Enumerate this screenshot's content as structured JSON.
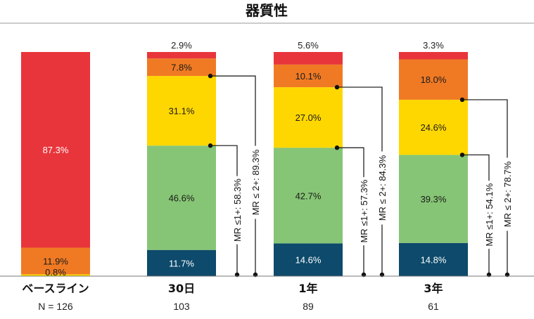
{
  "chart_data": {
    "type": "bar",
    "stacked": true,
    "title": "器質性",
    "categories": [
      "ベースライン",
      "30日",
      "1年",
      "3年"
    ],
    "n_values": [
      "N = 126",
      "103",
      "89",
      "61"
    ],
    "series": [
      {
        "color": "#0d4a6b",
        "values": [
          0.0,
          11.7,
          14.6,
          14.8
        ],
        "labels": [
          "",
          "11.7%",
          "14.6%",
          "14.8%"
        ]
      },
      {
        "color": "#86c575",
        "values": [
          0.0,
          46.6,
          42.7,
          39.3
        ],
        "labels": [
          "",
          "46.6%",
          "42.7%",
          "39.3%"
        ]
      },
      {
        "color": "#ffd700",
        "values": [
          0.8,
          31.1,
          27.0,
          24.6
        ],
        "labels": [
          "0.8%",
          "31.1%",
          "27.0%",
          "24.6%"
        ]
      },
      {
        "color": "#f07a24",
        "values": [
          11.9,
          7.8,
          10.1,
          18.0
        ],
        "labels": [
          "11.9%",
          "7.8%",
          "10.1%",
          "18.0%"
        ]
      },
      {
        "color": "#e8353b",
        "values": [
          87.3,
          2.9,
          5.6,
          3.3
        ],
        "labels": [
          "87.3%",
          "2.9%",
          "5.6%",
          "3.3%"
        ]
      }
    ],
    "annotations": [
      {
        "category": "30日",
        "label1": "MR ≤1+: 58.3%",
        "label2": "MR ≤ 2+: 89.3%"
      },
      {
        "category": "1年",
        "label1": "MR ≤1+: 57.3%",
        "label2": "MR ≤ 2+: 84.3%"
      },
      {
        "category": "3年",
        "label1": "MR ≤1+: 54.1%",
        "label2": "MR ≤ 2+: 78.7%"
      }
    ]
  }
}
